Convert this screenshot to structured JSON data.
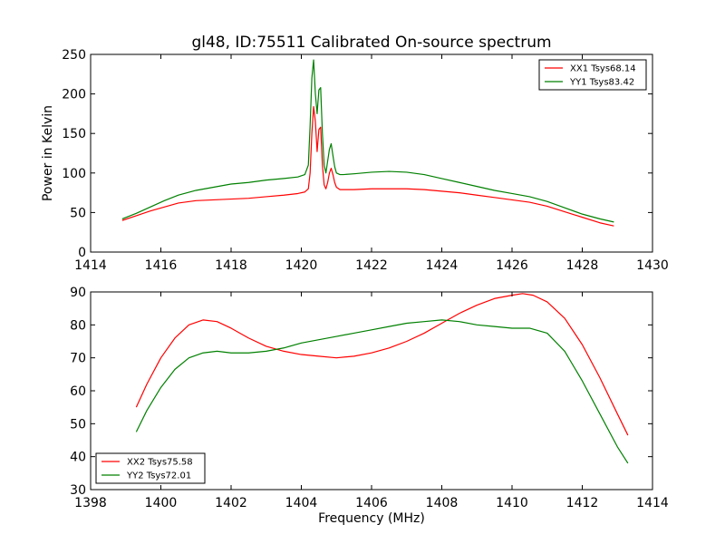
{
  "figure": {
    "title": "gl48, ID:75511 Calibrated On-source spectrum"
  },
  "chart_data": [
    {
      "type": "line",
      "title": "gl48, ID:75511 Calibrated On-source spectrum",
      "xlabel": "",
      "ylabel": "Power in Kelvin",
      "xlim": [
        1414,
        1430
      ],
      "ylim": [
        0,
        250
      ],
      "xticks": [
        1414,
        1416,
        1418,
        1420,
        1422,
        1424,
        1426,
        1428,
        1430
      ],
      "yticks": [
        0,
        50,
        100,
        150,
        200,
        250
      ],
      "grid": false,
      "legend_position": "top-right",
      "series": [
        {
          "name": "XX1 Tsys68.14",
          "color": "#ff0000",
          "x": [
            1414.9,
            1415.3,
            1415.7,
            1416.1,
            1416.5,
            1417.0,
            1417.5,
            1418.0,
            1418.5,
            1419.0,
            1419.5,
            1419.9,
            1420.1,
            1420.2,
            1420.25,
            1420.3,
            1420.35,
            1420.4,
            1420.45,
            1420.5,
            1420.55,
            1420.6,
            1420.65,
            1420.7,
            1420.75,
            1420.8,
            1420.85,
            1420.9,
            1420.95,
            1421.0,
            1421.1,
            1421.2,
            1421.5,
            1422.0,
            1422.5,
            1423.0,
            1423.5,
            1424.0,
            1424.5,
            1425.0,
            1425.5,
            1426.0,
            1426.5,
            1427.0,
            1427.5,
            1428.0,
            1428.5,
            1428.9
          ],
          "y": [
            40,
            46,
            52,
            57,
            62,
            65,
            66,
            67,
            68,
            70,
            72,
            74,
            76,
            80,
            100,
            150,
            184,
            165,
            127,
            155,
            158,
            110,
            85,
            80,
            88,
            100,
            106,
            98,
            88,
            82,
            79,
            79,
            79,
            80,
            80,
            80,
            79,
            77,
            75,
            72,
            69,
            66,
            63,
            58,
            51,
            44,
            37,
            33
          ]
        },
        {
          "name": "YY1 Tsys83.42",
          "color": "#008000",
          "x": [
            1414.9,
            1415.3,
            1415.7,
            1416.1,
            1416.5,
            1417.0,
            1417.5,
            1418.0,
            1418.5,
            1419.0,
            1419.5,
            1419.9,
            1420.1,
            1420.2,
            1420.25,
            1420.3,
            1420.35,
            1420.4,
            1420.45,
            1420.5,
            1420.55,
            1420.6,
            1420.65,
            1420.7,
            1420.75,
            1420.8,
            1420.85,
            1420.9,
            1420.95,
            1421.0,
            1421.1,
            1421.2,
            1421.5,
            1422.0,
            1422.5,
            1423.0,
            1423.5,
            1424.0,
            1424.5,
            1425.0,
            1425.5,
            1426.0,
            1426.5,
            1427.0,
            1427.5,
            1428.0,
            1428.5,
            1428.9
          ],
          "y": [
            42,
            49,
            57,
            65,
            72,
            78,
            82,
            86,
            88,
            91,
            93,
            95,
            98,
            110,
            160,
            220,
            243,
            200,
            175,
            205,
            208,
            150,
            110,
            100,
            115,
            130,
            137,
            122,
            108,
            100,
            98,
            98,
            99,
            101,
            102,
            101,
            98,
            93,
            88,
            83,
            78,
            74,
            70,
            64,
            56,
            48,
            42,
            38
          ]
        }
      ]
    },
    {
      "type": "line",
      "title": "",
      "xlabel": "Frequency (MHz)",
      "ylabel": "",
      "xlim": [
        1398,
        1414
      ],
      "ylim": [
        30,
        90
      ],
      "xticks": [
        1398,
        1400,
        1402,
        1404,
        1406,
        1408,
        1410,
        1412,
        1414
      ],
      "yticks": [
        30,
        40,
        50,
        60,
        70,
        80,
        90
      ],
      "grid": false,
      "legend_position": "bottom-left",
      "series": [
        {
          "name": "XX2 Tsys75.58",
          "color": "#ff0000",
          "x": [
            1399.3,
            1399.6,
            1400.0,
            1400.4,
            1400.8,
            1401.2,
            1401.6,
            1402.0,
            1402.5,
            1403.0,
            1403.5,
            1404.0,
            1404.5,
            1405.0,
            1405.5,
            1406.0,
            1406.5,
            1407.0,
            1407.5,
            1408.0,
            1408.5,
            1409.0,
            1409.5,
            1410.0,
            1410.3,
            1410.6,
            1411.0,
            1411.5,
            1412.0,
            1412.5,
            1413.0,
            1413.3
          ],
          "y": [
            55,
            62,
            70,
            76,
            80,
            81.5,
            81,
            79,
            76,
            73.5,
            72,
            71,
            70.5,
            70,
            70.5,
            71.5,
            73,
            75,
            77.5,
            80.5,
            83.5,
            86,
            88,
            89,
            89.5,
            89,
            87,
            82,
            74,
            64,
            53,
            46.5
          ]
        },
        {
          "name": "YY2 Tsys72.01",
          "color": "#008000",
          "x": [
            1399.3,
            1399.6,
            1400.0,
            1400.4,
            1400.8,
            1401.2,
            1401.6,
            1402.0,
            1402.5,
            1403.0,
            1403.5,
            1404.0,
            1404.5,
            1405.0,
            1405.5,
            1406.0,
            1406.5,
            1407.0,
            1407.5,
            1408.0,
            1408.5,
            1409.0,
            1409.5,
            1410.0,
            1410.5,
            1411.0,
            1411.5,
            1412.0,
            1412.5,
            1413.0,
            1413.3
          ],
          "y": [
            47.5,
            54,
            61,
            66.5,
            70,
            71.5,
            72,
            71.5,
            71.5,
            72,
            73,
            74.5,
            75.5,
            76.5,
            77.5,
            78.5,
            79.5,
            80.5,
            81,
            81.5,
            81,
            80,
            79.5,
            79,
            79,
            77.5,
            72,
            63,
            53,
            43,
            38
          ]
        }
      ]
    }
  ]
}
